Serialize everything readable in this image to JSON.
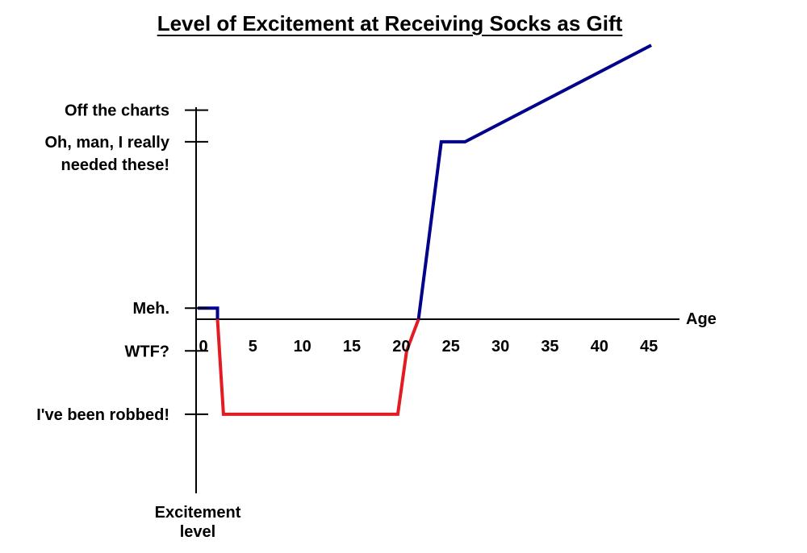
{
  "chart_data": {
    "type": "line",
    "title": "Level of Excitement at Receiving Socks as Gift",
    "xlabel": "Age",
    "ylabel": "Excitement level",
    "x_ticks": [
      0,
      5,
      10,
      15,
      20,
      25,
      30,
      35,
      40,
      45
    ],
    "y_categories": [
      {
        "label": "I've been robbed!",
        "value": -3
      },
      {
        "label": "WTF?",
        "value": -1
      },
      {
        "label": "Meh.",
        "value": 0.35
      },
      {
        "label": "Oh, man, I really needed these!",
        "value": 5.6
      },
      {
        "label": "Off the charts",
        "value": 6.6
      }
    ],
    "xlim": [
      -0.1,
      49
    ],
    "ylim": [
      -5.3,
      7.2
    ],
    "grid": false,
    "series": [
      {
        "color": "#00008b",
        "points": [
          [
            0,
            0.35
          ],
          [
            2,
            0.35
          ],
          [
            2,
            0
          ]
        ]
      },
      {
        "color": "#e31b23",
        "points": [
          [
            2,
            0
          ],
          [
            2.6,
            -3
          ],
          [
            20.2,
            -3
          ],
          [
            21.1,
            -1
          ],
          [
            22.3,
            0
          ]
        ]
      },
      {
        "color": "#00008b",
        "points": [
          [
            22.3,
            0
          ],
          [
            24.6,
            5.6
          ],
          [
            27,
            5.6
          ],
          [
            45.8,
            8.65
          ]
        ]
      }
    ]
  }
}
